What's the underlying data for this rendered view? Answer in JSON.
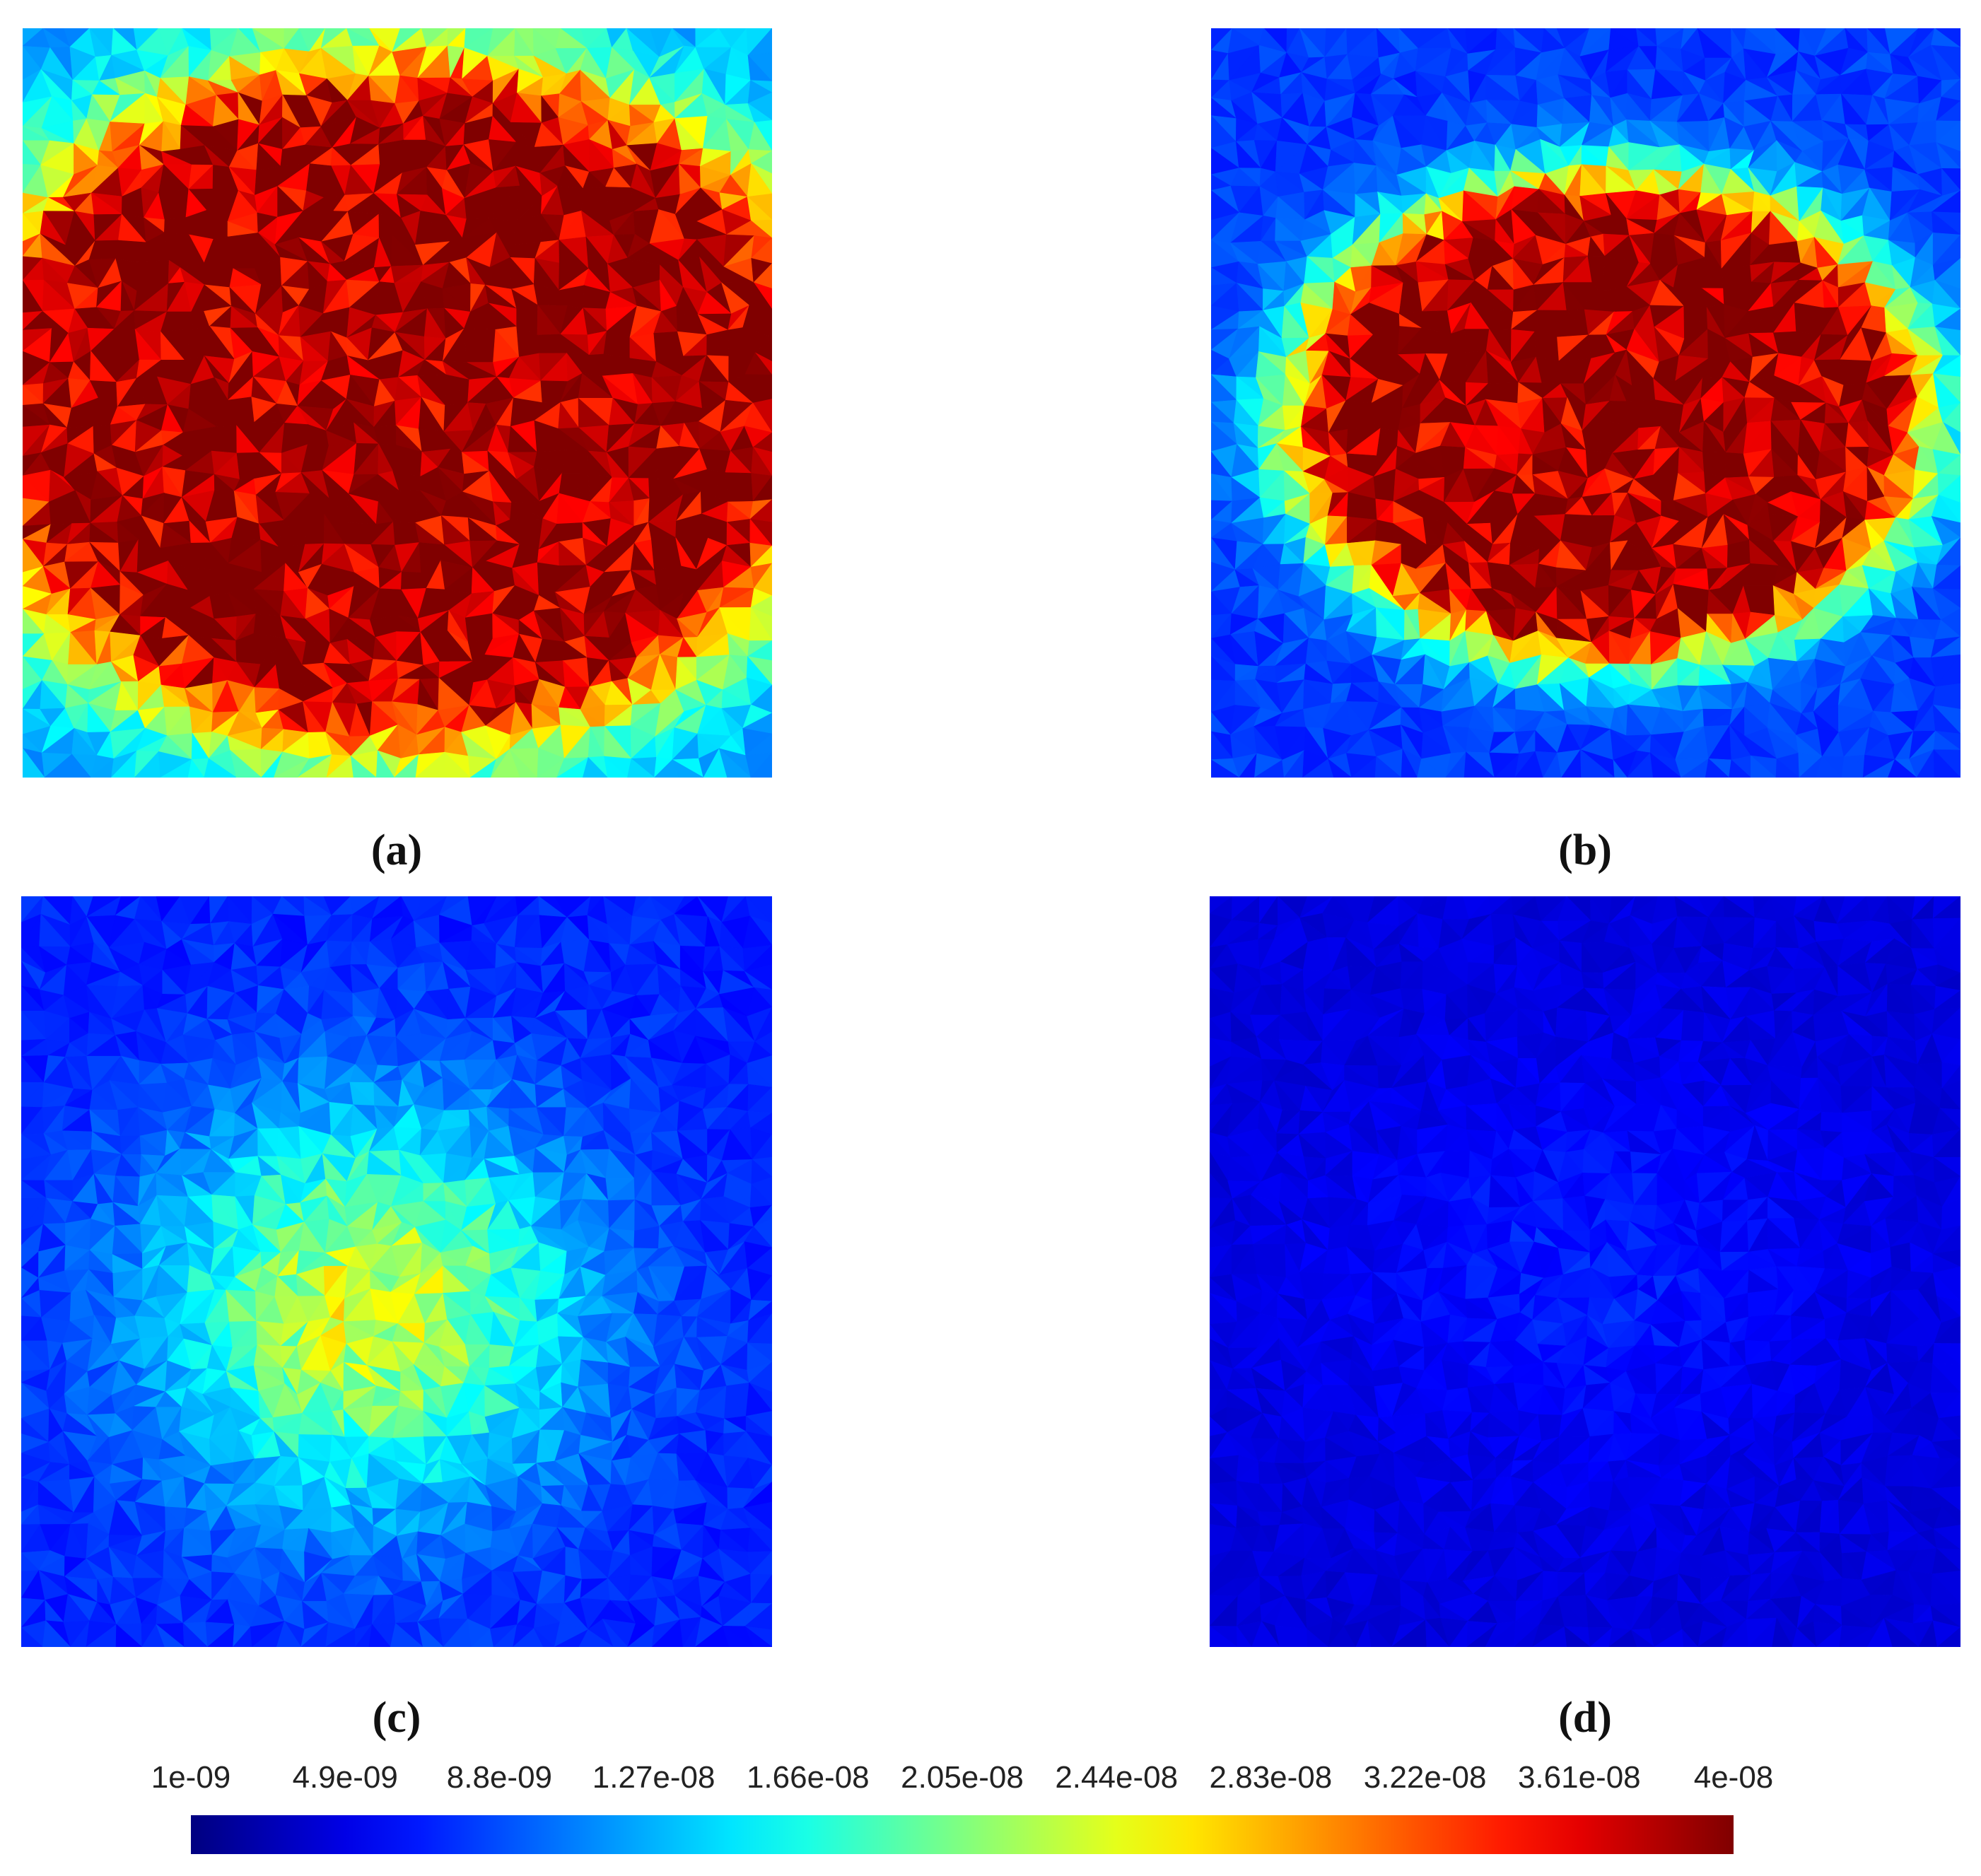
{
  "chart_data": {
    "type": "heatmap",
    "colormap": "jet",
    "value_range": [
      1e-09,
      4e-08
    ],
    "colorbar": {
      "orientation": "horizontal",
      "placement": "bottom",
      "ticks": [
        "1e-09",
        "4.9e-09",
        "8.8e-09",
        "1.27e-08",
        "1.66e-08",
        "2.05e-08",
        "2.44e-08",
        "2.83e-08",
        "3.22e-08",
        "3.61e-08",
        "4e-08"
      ]
    },
    "panels": [
      {
        "label": "(a)",
        "peak": 4e-08,
        "background": 1.2e-08,
        "rx": 0.47,
        "ry": 0.37,
        "center": [
          0.5,
          0.5
        ],
        "saturated_core": true
      },
      {
        "label": "(b)",
        "peak": 4e-08,
        "background": 8e-09,
        "rx": 0.34,
        "ry": 0.26,
        "center": [
          0.53,
          0.52
        ],
        "saturated_core": true
      },
      {
        "label": "(c)",
        "peak": 2.4e-08,
        "background": 7e-09,
        "rx": 0.32,
        "ry": 0.3,
        "center": [
          0.46,
          0.55
        ],
        "saturated_core": false
      },
      {
        "label": "(d)",
        "peak": 7e-09,
        "background": 4.5e-09,
        "rx": 0.35,
        "ry": 0.28,
        "center": [
          0.5,
          0.5
        ],
        "saturated_core": false
      }
    ]
  }
}
